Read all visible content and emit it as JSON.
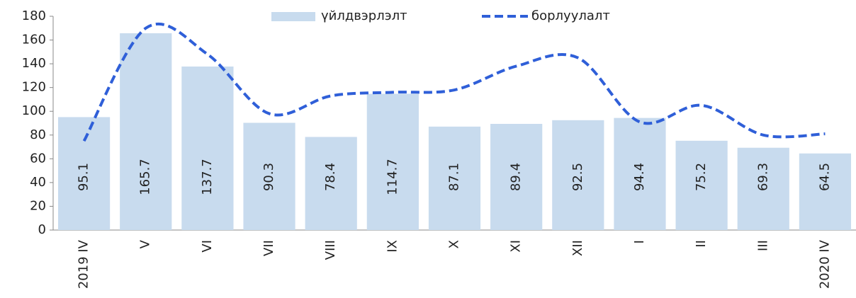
{
  "chart_data": {
    "type": "bar",
    "categories": [
      "2019 IV",
      "V",
      "VI",
      "VII",
      "VIII",
      "IX",
      "X",
      "XI",
      "XII",
      "I",
      "II",
      "III",
      "2020 IV"
    ],
    "series": [
      {
        "name": "үйлдвэрлэлт",
        "type": "bar",
        "color": "#c8dbee",
        "values": [
          95.1,
          165.7,
          137.7,
          90.3,
          78.4,
          114.7,
          87.1,
          89.4,
          92.5,
          94.4,
          75.2,
          69.3,
          64.5
        ]
      },
      {
        "name": "борлуулалт",
        "type": "line",
        "color": "#2f5fd8",
        "values": [
          75,
          170,
          148,
          98,
          113,
          116,
          118,
          138,
          145,
          91,
          105,
          80,
          81
        ]
      }
    ],
    "ylim": [
      0,
      180
    ],
    "yticks": [
      0,
      20,
      40,
      60,
      80,
      100,
      120,
      140,
      160,
      180
    ]
  }
}
